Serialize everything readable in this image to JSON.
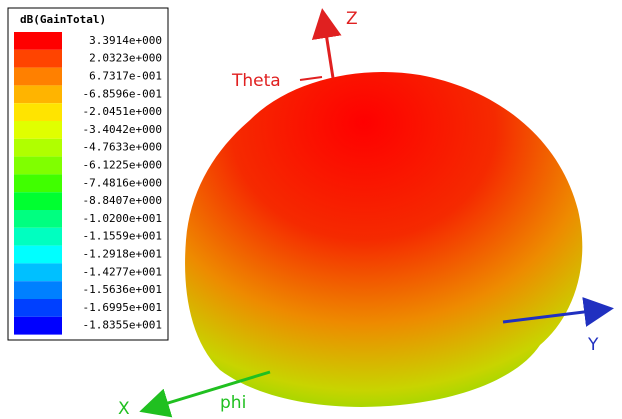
{
  "legend": {
    "title": "dB(GainTotal)",
    "entries": [
      {
        "label": "3.3914e+000",
        "color": "#ff0000"
      },
      {
        "label": "2.0323e+000",
        "color": "#ff4400"
      },
      {
        "label": "6.7317e-001",
        "color": "#ff8000"
      },
      {
        "label": "-6.8596e-001",
        "color": "#ffb400"
      },
      {
        "label": "-2.0451e+000",
        "color": "#ffe400"
      },
      {
        "label": "-3.4042e+000",
        "color": "#e0ff00"
      },
      {
        "label": "-4.7633e+000",
        "color": "#b0ff00"
      },
      {
        "label": "-6.1225e+000",
        "color": "#80ff00"
      },
      {
        "label": "-7.4816e+000",
        "color": "#40ff00"
      },
      {
        "label": "-8.8407e+000",
        "color": "#00ff30"
      },
      {
        "label": "-1.0200e+001",
        "color": "#00ff80"
      },
      {
        "label": "-1.1559e+001",
        "color": "#00ffc0"
      },
      {
        "label": "-1.2918e+001",
        "color": "#00ffff"
      },
      {
        "label": "-1.4277e+001",
        "color": "#00c0ff"
      },
      {
        "label": "-1.5636e+001",
        "color": "#0080ff"
      },
      {
        "label": "-1.6995e+001",
        "color": "#0040ff"
      },
      {
        "label": "-1.8355e+001",
        "color": "#0000ff"
      }
    ]
  },
  "axes": {
    "z": "Z",
    "y": "Y",
    "x": "X",
    "theta": "Theta",
    "phi": "phi"
  }
}
